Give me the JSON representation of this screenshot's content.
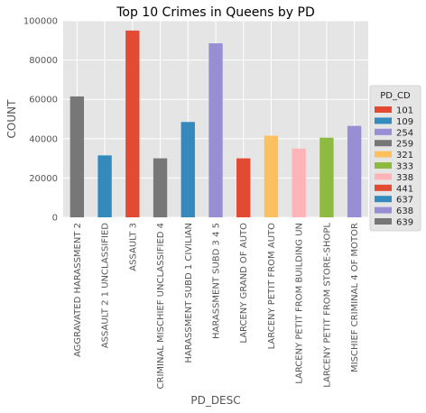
{
  "chart_data": {
    "type": "bar",
    "title": "Top 10 Crimes in Queens by PD",
    "xlabel": "PD_DESC",
    "ylabel": "COUNT",
    "ylim": [
      0,
      100000
    ],
    "yticks": [
      "0",
      "20000",
      "40000",
      "60000",
      "80000",
      "100000"
    ],
    "grid": true,
    "legend_position": "right",
    "legend_title": "PD_CD",
    "categories": [
      "AGGRAVATED HARASSMENT 2",
      "ASSAULT 2 1 UNCLASSIFIED",
      "ASSAULT 3",
      "CRIMINAL MISCHIEF UNCLASSIFIED 4",
      "HARASSMENT SUBD 1 CIVILIAN",
      "HARASSMENT SUBD 3 4 5",
      "LARCENY GRAND OF AUTO",
      "LARCENY PETIT FROM AUTO",
      "LARCENY PETIT FROM BUILDING UN",
      "LARCENY PETIT FROM STORE-SHOPL",
      "MISCHIEF  CRIMINAL 4  OF MOTOR"
    ],
    "values": [
      61500,
      31500,
      95000,
      30000,
      48500,
      88500,
      30000,
      41500,
      35000,
      40500,
      46500
    ],
    "bar_colors": [
      "#777777",
      "#348abd",
      "#e24a33",
      "#777777",
      "#348abd",
      "#988ed5",
      "#e24a33",
      "#fbc15e",
      "#ffb5b8",
      "#8eba42",
      "#988ed5"
    ],
    "legend": [
      {
        "label": "101",
        "color": "#e24a33"
      },
      {
        "label": "109",
        "color": "#348abd"
      },
      {
        "label": "254",
        "color": "#988ed5"
      },
      {
        "label": "259",
        "color": "#777777"
      },
      {
        "label": "321",
        "color": "#fbc15e"
      },
      {
        "label": "333",
        "color": "#8eba42"
      },
      {
        "label": "338",
        "color": "#ffb5b8"
      },
      {
        "label": "441",
        "color": "#e24a33"
      },
      {
        "label": "637",
        "color": "#348abd"
      },
      {
        "label": "638",
        "color": "#988ed5"
      },
      {
        "label": "639",
        "color": "#777777"
      }
    ]
  },
  "colors": {
    "plot_background": "#e5e5e5",
    "grid": "#ffffff"
  }
}
